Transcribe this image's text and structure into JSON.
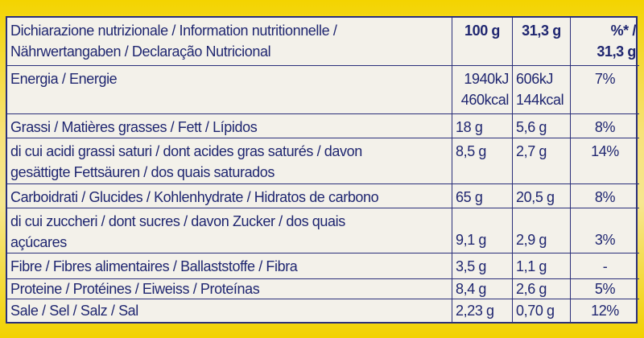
{
  "header": {
    "label_line1": "Dichiarazione nutrizionale / Information nutritionnelle /",
    "label_line2": "Nährwertangaben / Declaração Nutricional",
    "col_100g": "100 g",
    "col_portion": "31,3 g",
    "col_pct_line1": "%* /",
    "col_pct_line2": "31,3 g"
  },
  "rows": [
    {
      "label": "Energia / Energie",
      "v100": "1940kJ",
      "v100b": "460kcal",
      "vp": "606kJ",
      "vpb": "144kcal",
      "pct": "7%"
    },
    {
      "label": "Grassi / Matières grasses / Fett / Lípidos",
      "v100": "18 g",
      "vp": "5,6 g",
      "pct": "8%"
    },
    {
      "label": "di cui acidi grassi saturi / dont acides gras saturés / davon",
      "label2": "gesättigte Fettsäuren / dos quais saturados",
      "v100": "8,5 g",
      "vp": "2,7 g",
      "pct": "14%"
    },
    {
      "label": "Carboidrati / Glucides / Kohlenhydrate / Hidratos de carbono",
      "v100": "65 g",
      "vp": "20,5 g",
      "pct": "8%"
    },
    {
      "label": "di cui zuccheri / dont sucres / davon Zucker / dos quais",
      "label2": "açúcares",
      "v100": "9,1 g",
      "vp": "2,9 g",
      "pct": "3%"
    },
    {
      "label": "Fibre / Fibres alimentaires / Ballaststoffe / Fibra",
      "v100": "3,5 g",
      "vp": "1,1 g",
      "pct": "-"
    },
    {
      "label": "Proteine / Protéines / Eiweiss / Proteínas",
      "v100": "8,4 g",
      "vp": "2,6 g",
      "pct": "5%"
    },
    {
      "label": "Sale / Sel / Salz / Sal",
      "v100": "2,23 g",
      "vp": "0,70 g",
      "pct": "12%"
    }
  ],
  "colors": {
    "ink": "#1f2670",
    "package": "#f3d400",
    "label_bg": "#f3f1ea"
  }
}
